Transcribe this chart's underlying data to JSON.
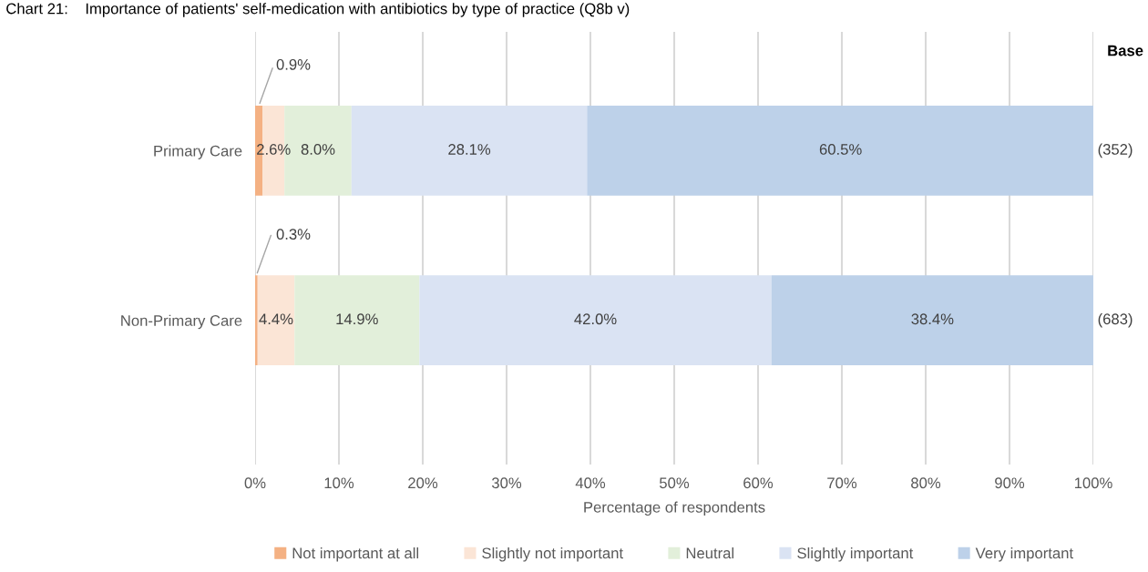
{
  "chart_data": {
    "type": "bar",
    "orientation": "horizontal",
    "stacked": true,
    "title": "Chart 21:    Importance of patients' self-medication with antibiotics by type of practice (Q8b v)",
    "xlabel": "Percentage of respondents",
    "categories": [
      "Primary Care",
      "Non-Primary Care"
    ],
    "series": [
      {
        "name": "Not important at all",
        "color": "#f4b183",
        "values": [
          0.9,
          0.3
        ],
        "value_labels": [
          "0.9%",
          "0.3%"
        ]
      },
      {
        "name": "Slightly not important",
        "color": "#fbe5d6",
        "values": [
          2.6,
          4.4
        ],
        "value_labels": [
          "2.6%",
          "4.4%"
        ]
      },
      {
        "name": "Neutral",
        "color": "#e2efda",
        "values": [
          8.0,
          14.9
        ],
        "value_labels": [
          "8.0%",
          "14.9%"
        ]
      },
      {
        "name": "Slightly important",
        "color": "#dae3f3",
        "values": [
          28.1,
          42.0
        ],
        "value_labels": [
          "28.1%",
          "42.0%"
        ]
      },
      {
        "name": "Very important",
        "color": "#bdd1e9",
        "values": [
          60.5,
          38.4
        ],
        "value_labels": [
          "60.5%",
          "38.4%"
        ]
      }
    ],
    "xlim": [
      0,
      100
    ],
    "xticks": [
      {
        "value": 0,
        "label": "0%"
      },
      {
        "value": 10,
        "label": "10%"
      },
      {
        "value": 20,
        "label": "20%"
      },
      {
        "value": 30,
        "label": "30%"
      },
      {
        "value": 40,
        "label": "40%"
      },
      {
        "value": 50,
        "label": "50%"
      },
      {
        "value": 60,
        "label": "60%"
      },
      {
        "value": 70,
        "label": "70%"
      },
      {
        "value": 80,
        "label": "80%"
      },
      {
        "value": 90,
        "label": "90%"
      },
      {
        "value": 100,
        "label": "100%"
      }
    ],
    "grid": "x",
    "legend": "bottom",
    "annotations": [
      "Base",
      "(352)",
      "(683)"
    ]
  }
}
